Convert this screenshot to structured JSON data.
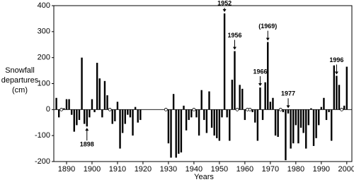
{
  "chart_data": {
    "type": "bar",
    "y_label": [
      "Snowfall",
      "departures",
      "(cm)"
    ],
    "x_label": "Years",
    "x": [
      1886,
      1887,
      1888,
      1889,
      1890,
      1891,
      1892,
      1893,
      1894,
      1895,
      1896,
      1897,
      1898,
      1899,
      1900,
      1901,
      1902,
      1903,
      1904,
      1905,
      1906,
      1907,
      1908,
      1909,
      1910,
      1911,
      1912,
      1913,
      1914,
      1915,
      1916,
      1917,
      1918,
      1919,
      1920,
      1921,
      1922,
      1923,
      1924,
      1925,
      1926,
      1927,
      1928,
      1929,
      1930,
      1931,
      1932,
      1933,
      1934,
      1935,
      1936,
      1937,
      1938,
      1939,
      1940,
      1941,
      1942,
      1943,
      1944,
      1945,
      1946,
      1947,
      1948,
      1949,
      1950,
      1951,
      1952,
      1953,
      1954,
      1955,
      1956,
      1957,
      1958,
      1959,
      1960,
      1961,
      1962,
      1963,
      1964,
      1965,
      1966,
      1967,
      1968,
      1969,
      1970,
      1971,
      1972,
      1973,
      1974,
      1975,
      1976,
      1977,
      1978,
      1979,
      1980,
      1981,
      1982,
      1983,
      1984,
      1985,
      1986,
      1987,
      1988,
      1989,
      1990,
      1991,
      1992,
      1993,
      1994,
      1995,
      1996,
      1997,
      1998,
      1999,
      2000
    ],
    "values": [
      45,
      -30,
      0,
      5,
      40,
      40,
      -20,
      -85,
      -60,
      -40,
      200,
      -55,
      -65,
      -30,
      40,
      -10,
      180,
      120,
      -30,
      110,
      55,
      0,
      -55,
      -45,
      30,
      -150,
      -90,
      -55,
      -20,
      -30,
      -100,
      10,
      -50,
      -40,
      null,
      null,
      null,
      null,
      null,
      null,
      null,
      null,
      null,
      0,
      -130,
      -185,
      60,
      -185,
      -170,
      -165,
      15,
      -80,
      -40,
      -30,
      0,
      -30,
      -100,
      75,
      -40,
      -90,
      70,
      -70,
      -100,
      -110,
      -120,
      -30,
      370,
      -30,
      -120,
      115,
      225,
      0,
      95,
      80,
      -40,
      0,
      0,
      -10,
      -50,
      -120,
      85,
      -40,
      105,
      260,
      30,
      45,
      -100,
      -105,
      0,
      -10,
      -195,
      -15,
      -150,
      -130,
      -60,
      -130,
      -70,
      -90,
      -150,
      -60,
      5,
      -140,
      -110,
      -60,
      10,
      45,
      -40,
      -10,
      -120,
      170,
      130,
      95,
      0,
      15,
      165
    ],
    "color": "#000000",
    "xlim": [
      1885,
      2002
    ],
    "xticks": [
      1890,
      1900,
      1910,
      1920,
      1930,
      1940,
      1950,
      1960,
      1970,
      1980,
      1990,
      2000
    ],
    "ylim": [
      -200,
      400
    ],
    "yticks": [
      -200,
      -100,
      0,
      100,
      200,
      300,
      400
    ],
    "annotations": [
      {
        "text": "1952",
        "x": 1952,
        "placement": "above"
      },
      {
        "text": "1956",
        "x": 1956,
        "placement": "above"
      },
      {
        "text": "(1969)",
        "x": 1969,
        "placement": "above"
      },
      {
        "text": "1966",
        "x": 1966,
        "placement": "above"
      },
      {
        "text": "1977",
        "x": 1977,
        "placement": "above"
      },
      {
        "text": "1996",
        "x": 1996,
        "placement": "above"
      },
      {
        "text": "1898",
        "x": 1898,
        "placement": "below"
      }
    ]
  }
}
